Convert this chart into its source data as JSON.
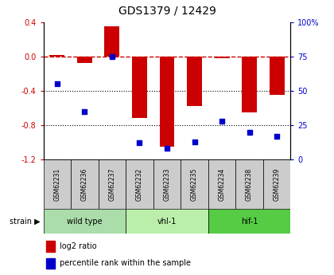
{
  "title": "GDS1379 / 12429",
  "samples": [
    "GSM62231",
    "GSM62236",
    "GSM62237",
    "GSM62232",
    "GSM62233",
    "GSM62235",
    "GSM62234",
    "GSM62238",
    "GSM62239"
  ],
  "log2_ratio": [
    0.02,
    -0.08,
    0.35,
    -0.72,
    -1.05,
    -0.58,
    -0.02,
    -0.65,
    -0.45
  ],
  "percentile_rank": [
    55,
    35,
    75,
    12,
    8,
    13,
    28,
    20,
    17
  ],
  "groups": [
    {
      "label": "wild type",
      "start": 0,
      "end": 3
    },
    {
      "label": "vhl-1",
      "start": 3,
      "end": 6
    },
    {
      "label": "hif-1",
      "start": 6,
      "end": 9
    }
  ],
  "group_colors": [
    "#aaddaa",
    "#bbeeaa",
    "#55cc44"
  ],
  "row_label": "strain",
  "ylim_left": [
    -1.2,
    0.4
  ],
  "ylim_right": [
    0,
    100
  ],
  "yticks_left": [
    -1.2,
    -0.8,
    -0.4,
    0.0,
    0.4
  ],
  "yticks_right": [
    0,
    25,
    50,
    75,
    100
  ],
  "bar_color": "#cc0000",
  "scatter_color": "#0000cc",
  "sample_box_color": "#cccccc",
  "background_color": "#ffffff",
  "legend_red": "log2 ratio",
  "legend_blue": "percentile rank within the sample"
}
